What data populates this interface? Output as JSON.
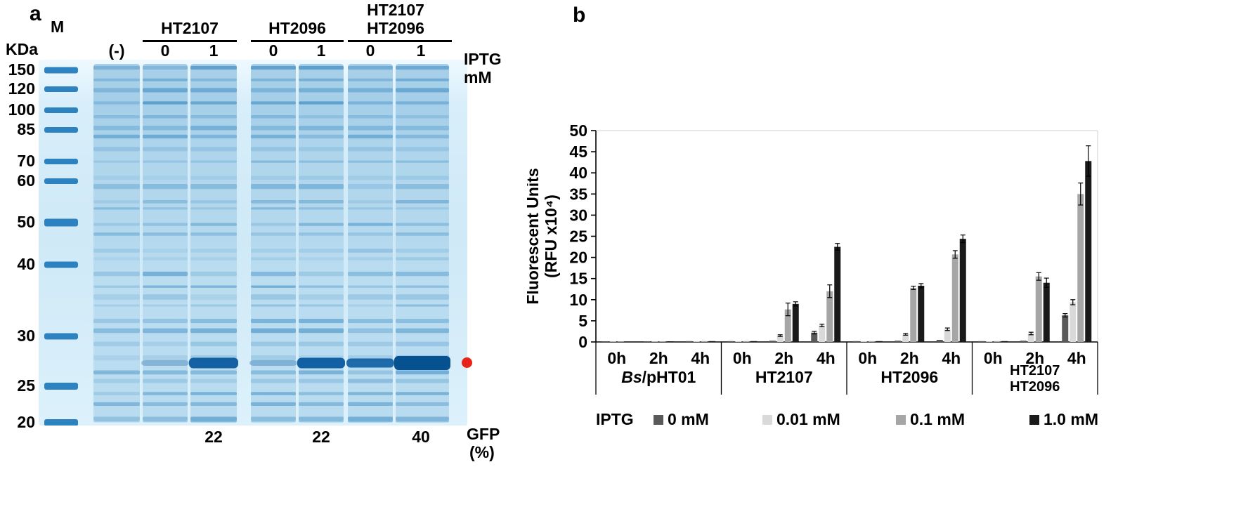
{
  "figure": {
    "panel_a_label": "a",
    "panel_b_label": "b"
  },
  "gel": {
    "marker_lane_label": "M",
    "unit_label": "KDa",
    "marker_weights": [
      "150",
      "120",
      "100",
      "85",
      "70",
      "60",
      "50",
      "40",
      "30",
      "25",
      "20"
    ],
    "neg_control_label": "(-)",
    "iptg_header_line1": "IPTG",
    "iptg_header_line2": "mM",
    "lane_groups": [
      {
        "name_lines": [
          "HT2107"
        ],
        "iptg_levels": [
          "0",
          "1"
        ]
      },
      {
        "name_lines": [
          "HT2096"
        ],
        "iptg_levels": [
          "0",
          "1"
        ]
      },
      {
        "name_lines": [
          "HT2107",
          "HT2096"
        ],
        "iptg_levels": [
          "0",
          "1"
        ]
      }
    ],
    "gfp_percent_values": [
      "22",
      "22",
      "40"
    ],
    "gfp_row_label_line1": "GFP",
    "gfp_row_label_line2": "(%)",
    "band_marker_color": "#e8231a"
  },
  "chart_data": {
    "type": "bar",
    "title": "",
    "ylabel_lines": [
      "Fluorescent Units",
      "(RFU x10⁴)"
    ],
    "ylim": [
      0,
      50
    ],
    "ytick_step": 5,
    "time_labels": [
      "0h",
      "2h",
      "4h"
    ],
    "groups": [
      {
        "label_lines": [
          "Bs/pHT01"
        ],
        "italic_prefix": "Bs"
      },
      {
        "label_lines": [
          "HT2107"
        ]
      },
      {
        "label_lines": [
          "HT2096"
        ]
      },
      {
        "label_lines": [
          "HT2107",
          "HT2096"
        ]
      }
    ],
    "legend_label": "IPTG",
    "series": [
      {
        "name": "0 mM",
        "color": "#595959",
        "values": [
          [
            0.15,
            0.15,
            0.2
          ],
          [
            0.2,
            0.3,
            2.2
          ],
          [
            0.2,
            0.3,
            0.5
          ],
          [
            0.2,
            0.3,
            6.3
          ]
        ],
        "errors": [
          [
            0,
            0,
            0
          ],
          [
            0,
            0,
            0.3
          ],
          [
            0,
            0,
            0
          ],
          [
            0,
            0,
            0.4
          ]
        ]
      },
      {
        "name": "0.01 mM",
        "color": "#d9d9d9",
        "values": [
          [
            0.1,
            0.1,
            0.15
          ],
          [
            0.15,
            1.5,
            3.9
          ],
          [
            0.15,
            1.8,
            3.0
          ],
          [
            0.15,
            2.0,
            9.4
          ]
        ],
        "errors": [
          [
            0,
            0,
            0
          ],
          [
            0,
            0.2,
            0.3
          ],
          [
            0,
            0.2,
            0.3
          ],
          [
            0,
            0.3,
            0.6
          ]
        ]
      },
      {
        "name": "0.1 mM",
        "color": "#a6a6a6",
        "values": [
          [
            0.1,
            0.15,
            0.2
          ],
          [
            0.2,
            7.7,
            12.0
          ],
          [
            0.2,
            12.8,
            20.7
          ],
          [
            0.2,
            15.5,
            35.0
          ]
        ],
        "errors": [
          [
            0,
            0,
            0
          ],
          [
            0,
            1.5,
            1.5
          ],
          [
            0,
            0.4,
            0.9
          ],
          [
            0,
            0.9,
            2.6
          ]
        ]
      },
      {
        "name": "1.0 mM",
        "color": "#1a1a1a",
        "values": [
          [
            0.1,
            0.15,
            0.2
          ],
          [
            0.2,
            9.0,
            22.5
          ],
          [
            0.2,
            13.3,
            24.4
          ],
          [
            0.2,
            14.0,
            42.8
          ]
        ],
        "errors": [
          [
            0,
            0,
            0
          ],
          [
            0,
            0.5,
            0.8
          ],
          [
            0,
            0.5,
            0.9
          ],
          [
            0,
            1.1,
            3.6
          ]
        ]
      }
    ]
  }
}
